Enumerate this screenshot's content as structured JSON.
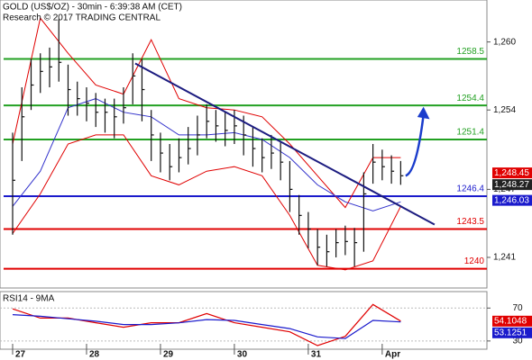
{
  "chart_data": [
    {
      "type": "ohlc",
      "title": "GOLD (US$/OZ) - 30min - 6:39:38 AM (CET)",
      "subtitle": "Research © 2017 TRADING CENTRAL",
      "xlim": [
        -4.1,
        154
      ],
      "xticks": [
        {
          "value": 0,
          "label": "27"
        },
        {
          "value": 24,
          "label": "28"
        },
        {
          "value": 48,
          "label": "29"
        },
        {
          "value": 72,
          "label": "30"
        },
        {
          "value": 96,
          "label": "31"
        },
        {
          "value": 120,
          "label": "Apr"
        }
      ],
      "ylim": [
        1238.3,
        1263.7
      ],
      "yticks": [
        {
          "value": 1241,
          "label": "1,241"
        },
        {
          "value": 1247,
          "label": "1,247"
        },
        {
          "value": 1254,
          "label": "1,254"
        },
        {
          "value": 1260,
          "label": "1,260"
        }
      ],
      "price": {
        "color": "#111111",
        "x": [
          0,
          3,
          6,
          9,
          12,
          15,
          18,
          21,
          24,
          27,
          30,
          33,
          36,
          39,
          42,
          45,
          48,
          51,
          54,
          57,
          60,
          63,
          66,
          69,
          72,
          75,
          78,
          81,
          84,
          87,
          90,
          93,
          96,
          99,
          102,
          105,
          108,
          111,
          114,
          117,
          120,
          123,
          126
        ],
        "high": [
          1252,
          1256,
          1258.5,
          1259,
          1259.5,
          1262,
          1258,
          1256.5,
          1256,
          1255.5,
          1255,
          1255,
          1256,
          1259,
          1258.5,
          1254,
          1252,
          1251,
          1251.5,
          1252.5,
          1253.5,
          1254.5,
          1254,
          1253.8,
          1254,
          1253.5,
          1252.5,
          1251.5,
          1251.8,
          1251.2,
          1249.5,
          1246.5,
          1245,
          1243.5,
          1243,
          1243.5,
          1243.8,
          1243.6,
          1248.5,
          1251,
          1250.5,
          1250,
          1249.5
        ],
        "low": [
          1243,
          1249.5,
          1254,
          1255.5,
          1256,
          1256.5,
          1253.5,
          1253.5,
          1253,
          1252.5,
          1252,
          1251.5,
          1252.8,
          1254.5,
          1253,
          1249.5,
          1248.5,
          1247.8,
          1248.5,
          1249.2,
          1250,
          1251.5,
          1251.2,
          1250.8,
          1251,
          1250,
          1249,
          1248.5,
          1248.8,
          1247.8,
          1245,
          1243,
          1241.8,
          1240.3,
          1240.2,
          1241,
          1241.2,
          1240.2,
          1241.5,
          1247.5,
          1247.8,
          1247.5,
          1247.4
        ],
        "close": [
          1247.8,
          1253.4,
          1256.2,
          1257.4,
          1257.8,
          1258.2,
          1255.8,
          1255,
          1254.6,
          1253.8,
          1253.8,
          1253.4,
          1254.2,
          1257,
          1255.8,
          1251.8,
          1250.2,
          1249,
          1249.8,
          1250.6,
          1251.8,
          1253,
          1252.6,
          1252.2,
          1252.6,
          1251.8,
          1250.6,
          1249.8,
          1250.2,
          1249.4,
          1247,
          1244.7,
          1243.5,
          1241.9,
          1241.5,
          1242.3,
          1242.4,
          1242.3,
          1246.6,
          1249.4,
          1249,
          1248.6,
          1248.2
        ]
      },
      "bands": {
        "x": [
          0,
          9,
          18,
          27,
          36,
          45,
          54,
          63,
          72,
          81,
          90,
          99,
          108,
          117,
          126
        ],
        "upper": [
          1251,
          1262.1,
          1259,
          1256.2,
          1255.4,
          1260.2,
          1255,
          1254.2,
          1254,
          1253.4,
          1251,
          1248.2,
          1245.4,
          1249.8,
          1249.8
        ],
        "middle": [
          1245.5,
          1248.6,
          1254.2,
          1255,
          1253.8,
          1253.4,
          1251.8,
          1251.8,
          1252,
          1251.4,
          1249.8,
          1247.4,
          1245.9,
          1245.1,
          1245.9
        ],
        "lower": [
          1243.1,
          1246.6,
          1251,
          1251.8,
          1251.8,
          1248.2,
          1247.4,
          1248.6,
          1249,
          1248.2,
          1244.7,
          1240.3,
          1239.9,
          1240.7,
          1245.5
        ],
        "band_color": "#e00000",
        "middle_color": "#3333cc"
      },
      "levels": [
        {
          "value": 1258.5,
          "color": "#22a022"
        },
        {
          "value": 1254.4,
          "color": "#22a022"
        },
        {
          "value": 1251.4,
          "color": "#22a022"
        },
        {
          "value": 1246.4,
          "color": "#1a1acc"
        },
        {
          "value": 1243.5,
          "color": "#e00000"
        },
        {
          "value": 1240,
          "color": "#e00000"
        }
      ],
      "trendline": {
        "x": [
          39.8,
          137
        ],
        "values": [
          1258.1,
          1243.9
        ],
        "color": "#1c1c80"
      },
      "arrow": {
        "x": [
          127.6,
          133.4
        ],
        "values": [
          1248.2,
          1254.2
        ],
        "color": "#1a3ccc"
      },
      "tags": [
        {
          "value": 1248.45,
          "label": "1,248.45",
          "color": "#e00000"
        },
        {
          "value": 1248.27,
          "label": "1,248.27",
          "color": "#222222"
        },
        {
          "value": 1246.03,
          "label": "1,246.03",
          "color": "#1a1acc"
        }
      ]
    },
    {
      "type": "line",
      "title": "RSI14 - 9MA",
      "ylim": [
        20,
        90
      ],
      "yticks": [
        30,
        70
      ],
      "x": [
        0,
        9,
        18,
        27,
        36,
        45,
        54,
        63,
        72,
        81,
        90,
        99,
        108,
        117,
        126
      ],
      "series": [
        {
          "color": "#e00000",
          "values": [
            69,
            57.8,
            57.8,
            52.2,
            46.7,
            52.2,
            52.2,
            63.3,
            52.2,
            46.7,
            41.1,
            24.4,
            35.6,
            74.4,
            54.1048
          ]
        },
        {
          "color": "#1a1acc",
          "values": [
            62,
            60,
            57,
            54,
            50,
            50,
            52,
            56,
            55,
            50,
            45,
            35,
            33,
            55,
            53.1251
          ]
        }
      ],
      "tags": [
        {
          "value": 54.1048,
          "color": "#e00000"
        },
        {
          "value": 53.1251,
          "color": "#1a1acc"
        }
      ]
    }
  ]
}
